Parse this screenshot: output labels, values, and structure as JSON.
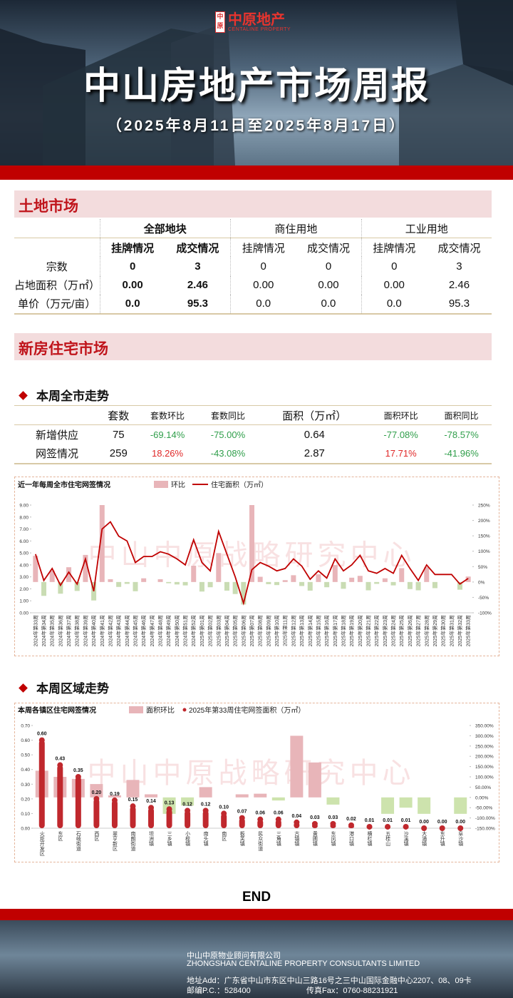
{
  "header": {
    "logo_mark": "中原",
    "logo": "中原地产",
    "logo_en": "CENTALINE PROPERTY",
    "title": "中山房地产市场周报",
    "subtitle": "（2025年8月11日至2025年8月17日）"
  },
  "land_market": {
    "title": "土地市场",
    "groups": [
      "全部地块",
      "商住用地",
      "工业用地"
    ],
    "columns": [
      "挂牌情况",
      "成交情况",
      "挂牌情况",
      "成交情况",
      "挂牌情况",
      "成交情况"
    ],
    "rows": [
      {
        "label": "宗数",
        "cells": [
          "0",
          "3",
          "0",
          "0",
          "0",
          "3"
        ]
      },
      {
        "label": "占地面积（万㎡）",
        "cells": [
          "0.00",
          "2.46",
          "0.00",
          "0.00",
          "0.00",
          "2.46"
        ]
      },
      {
        "label": "单价（万元/亩）",
        "cells": [
          "0.0",
          "95.3",
          "0.0",
          "0.0",
          "0.0",
          "95.3"
        ]
      }
    ]
  },
  "new_home_market": {
    "title": "新房住宅市场",
    "citywide_title": "本周全市走势",
    "columns": [
      "套数",
      "套数环比",
      "套数同比",
      "面积（万㎡）",
      "面积环比",
      "面积同比"
    ],
    "rows": [
      {
        "label": "新增供应",
        "cells": [
          "75",
          "-69.14%",
          "-75.00%",
          "0.64",
          "-77.08%",
          "-78.57%"
        ]
      },
      {
        "label": "网签情况",
        "cells": [
          "259",
          "18.26%",
          "-43.08%",
          "2.87",
          "17.71%",
          "-41.96%"
        ]
      }
    ],
    "regional_title": "本周区域走势"
  },
  "watermark": "中山中原战略研究中心",
  "chart_data": [
    {
      "type": "combo",
      "title": "近一年每周全市住宅网签情况",
      "categories": [
        "2024年第33周",
        "2024年第34周",
        "2024年第35周",
        "2024年第36周",
        "2024年第37周",
        "2024年第38周",
        "2024年第39周",
        "2024年第40周",
        "2024年第41周",
        "2024年第42周",
        "2024年第43周",
        "2024年第44周",
        "2024年第45周",
        "2024年第46周",
        "2024年第47周",
        "2024年第48周",
        "2024年第49周",
        "2024年第50周",
        "2024年第51周",
        "2024年第52周",
        "2025年第01周",
        "2025年第02周",
        "2025年第03周",
        "2025年第04周",
        "2025年第05周",
        "2025年第06周",
        "2025年第07周",
        "2025年第08周",
        "2025年第09周",
        "2025年第10周",
        "2025年第11周",
        "2025年第12周",
        "2025年第13周",
        "2025年第14周",
        "2025年第15周",
        "2025年第16周",
        "2025年第17周",
        "2025年第18周",
        "2025年第19周",
        "2025年第20周",
        "2025年第21周",
        "2025年第22周",
        "2025年第23周",
        "2025年第24周",
        "2025年第25周",
        "2025年第26周",
        "2025年第27周",
        "2025年第28周",
        "2025年第29周",
        "2025年第30周",
        "2025年第31周",
        "2025年第32周",
        "2025年第33周"
      ],
      "series": [
        {
          "name": "环比",
          "type": "bar",
          "axis": "y2",
          "color": "#e8b5b9",
          "negative_color": "#c9dcb3",
          "values": [
            85,
            -45,
            37,
            -38,
            48,
            -29,
            88,
            -60,
            250,
            9,
            -16,
            -6,
            -30,
            12,
            0,
            9,
            -4,
            -8,
            -11,
            53,
            -31,
            -17,
            94,
            -28,
            -39,
            -73,
            250,
            17,
            -7,
            -10,
            6,
            22,
            -13,
            -28,
            25,
            -17,
            55,
            -22,
            14,
            20,
            -27,
            -6,
            12,
            -11,
            45,
            -23,
            -27,
            48,
            -20,
            0,
            0,
            -25,
            17.71
          ]
        },
        {
          "name": "住宅面积（万㎡）",
          "type": "line",
          "axis": "y",
          "color": "#c00000",
          "values": [
            4.9,
            2.7,
            3.7,
            2.3,
            3.4,
            2.4,
            4.5,
            1.8,
            7.0,
            7.6,
            6.4,
            6.0,
            4.2,
            4.7,
            4.7,
            5.1,
            4.9,
            4.5,
            4.0,
            6.1,
            4.2,
            3.5,
            6.8,
            4.9,
            3.0,
            0.8,
            3.6,
            4.2,
            3.9,
            3.5,
            3.7,
            4.5,
            3.9,
            2.8,
            3.5,
            2.9,
            4.5,
            3.5,
            4.0,
            4.8,
            3.5,
            3.3,
            3.7,
            3.3,
            4.8,
            3.7,
            2.7,
            4.0,
            3.2,
            3.2,
            3.2,
            2.4,
            2.87
          ]
        }
      ],
      "ylim": [
        0,
        9
      ],
      "yticks": [
        {
          "value": 0,
          "label": "0.00"
        },
        {
          "value": 1,
          "label": "1.00"
        },
        {
          "value": 2,
          "label": "2.00"
        },
        {
          "value": 3,
          "label": "3.00"
        },
        {
          "value": 4,
          "label": "4.00"
        },
        {
          "value": 5,
          "label": "5.00"
        },
        {
          "value": 6,
          "label": "6.00"
        },
        {
          "value": 7,
          "label": "7.00"
        },
        {
          "value": 8,
          "label": "8.00"
        },
        {
          "value": 9,
          "label": "9.00"
        }
      ],
      "y2lim": [
        -100,
        250
      ],
      "y2ticks": [
        {
          "value": -100,
          "label": "-100%"
        },
        {
          "value": -50,
          "label": "-50%"
        },
        {
          "value": 0,
          "label": "0%"
        },
        {
          "value": 50,
          "label": "50%"
        },
        {
          "value": 100,
          "label": "100%"
        },
        {
          "value": 150,
          "label": "150%"
        },
        {
          "value": 200,
          "label": "200%"
        },
        {
          "value": 250,
          "label": "250%"
        }
      ]
    },
    {
      "type": "combo",
      "title": "本周各镇区住宅网签情况",
      "categories": [
        "火炬开发区",
        "东区",
        "石岐街道",
        "西区",
        "翠亨新区",
        "南朗街道",
        "坦洲镇",
        "三乡镇",
        "小榄镇",
        "南头镇",
        "南区",
        "板芙镇",
        "民众街道",
        "三角镇",
        "古镇镇",
        "黄圃镇",
        "东凤镇",
        "港口镇",
        "横栏镇",
        "五桂山",
        "沙溪镇",
        "大涌镇",
        "东升镇",
        "阜沙镇"
      ],
      "series": [
        {
          "name": "面积环比",
          "type": "bar",
          "axis": "y2",
          "color": "#e8b5b9",
          "negative_color": "#cde3ad",
          "values": [
            130,
            100,
            90,
            65,
            10,
            85,
            15,
            -80,
            -40,
            50,
            0,
            15,
            18,
            -15,
            300,
            170,
            -35,
            0,
            0,
            -80,
            -50,
            -80,
            0,
            -80
          ]
        },
        {
          "name": "2025年第33周住宅网签面积（万㎡）",
          "type": "bar",
          "axis": "y",
          "color": "#c0282d",
          "marker": "circle",
          "values": [
            0.6,
            0.43,
            0.35,
            0.2,
            0.19,
            0.15,
            0.14,
            0.13,
            0.12,
            0.12,
            0.1,
            0.07,
            0.06,
            0.06,
            0.04,
            0.03,
            0.03,
            0.02,
            0.01,
            0.01,
            0.01,
            0.0,
            0.0,
            0.0
          ],
          "value_labels": [
            "0.60",
            "0.43",
            "0.35",
            "0.20",
            "0.19",
            "0.15",
            "0.14",
            "0.13",
            "0.12",
            "0.12",
            "0.10",
            "0.07",
            "0.06",
            "0.06",
            "0.04",
            "0.03",
            "0.03",
            "0.02",
            "0.01",
            "0.01",
            "0.01",
            "0.00",
            "0.00",
            "0.00"
          ]
        }
      ],
      "ylim": [
        0,
        0.7
      ],
      "yticks": [
        {
          "value": 0,
          "label": "0.00"
        },
        {
          "value": 0.1,
          "label": "0.10"
        },
        {
          "value": 0.2,
          "label": "0.20"
        },
        {
          "value": 0.3,
          "label": "0.30"
        },
        {
          "value": 0.4,
          "label": "0.40"
        },
        {
          "value": 0.5,
          "label": "0.50"
        },
        {
          "value": 0.6,
          "label": "0.60"
        },
        {
          "value": 0.7,
          "label": "0.70"
        }
      ],
      "y2lim": [
        -150,
        350
      ],
      "y2ticks": [
        {
          "value": -150,
          "label": "-150.00%"
        },
        {
          "value": -100,
          "label": "-100.00%"
        },
        {
          "value": -50,
          "label": "-50.00%"
        },
        {
          "value": 0,
          "label": "0.00%"
        },
        {
          "value": 50,
          "label": "50.00%"
        },
        {
          "value": 100,
          "label": "100.00%"
        },
        {
          "value": 150,
          "label": "150.00%"
        },
        {
          "value": 200,
          "label": "200.00%"
        },
        {
          "value": 250,
          "label": "250.00%"
        },
        {
          "value": 300,
          "label": "300.00%"
        },
        {
          "value": 350,
          "label": "350.00%"
        }
      ]
    }
  ],
  "footer": {
    "end": "END",
    "company": "中山中原物业顾问有限公司",
    "company_en": "ZHONGSHAN CENTALINE PROPERTY CONSULTANTS LIMITED",
    "address": "地址Add：广东省中山市东区中山三路16号之三中山国际金融中心2207、08、09卡",
    "postcode": "邮编P.C.：528400",
    "fax": "传真Fax：0760-88231921"
  }
}
